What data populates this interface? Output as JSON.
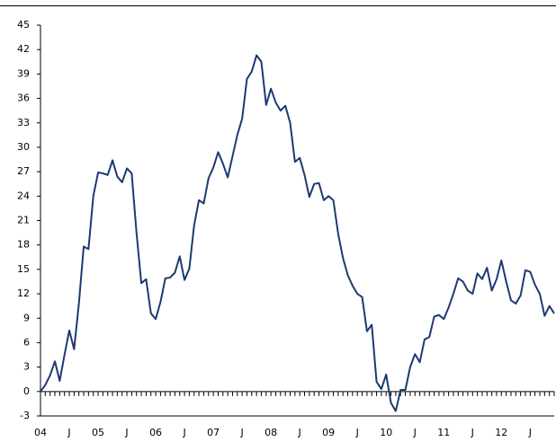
{
  "chart_data": {
    "type": "line",
    "color": "#1c3a72",
    "categories": [
      "04",
      null,
      null,
      null,
      null,
      null,
      "J",
      null,
      null,
      null,
      null,
      null,
      "05",
      null,
      null,
      null,
      null,
      null,
      "J",
      null,
      null,
      null,
      null,
      null,
      "06",
      null,
      null,
      null,
      null,
      null,
      "J",
      null,
      null,
      null,
      null,
      null,
      "07",
      null,
      null,
      null,
      null,
      null,
      "J",
      null,
      null,
      null,
      null,
      null,
      "08",
      null,
      null,
      null,
      null,
      null,
      "J",
      null,
      null,
      null,
      null,
      null,
      "09",
      null,
      null,
      null,
      null,
      null,
      "J",
      null,
      null,
      null,
      null,
      null,
      "10",
      null,
      null,
      null,
      null,
      null,
      "J",
      null,
      null,
      null,
      null,
      null,
      "11",
      null,
      null,
      null,
      null,
      null,
      "J",
      null,
      null,
      null,
      null,
      null,
      "12",
      null,
      null,
      null,
      null,
      null,
      "J",
      null,
      null,
      null,
      null,
      null
    ],
    "values": [
      0,
      0.8,
      2.0,
      3.7,
      1.3,
      4.5,
      7.5,
      5.2,
      10.8,
      17.8,
      17.5,
      24.0,
      26.9,
      26.8,
      26.6,
      28.4,
      26.4,
      25.7,
      27.4,
      26.8,
      19.5,
      13.3,
      13.8,
      9.6,
      8.9,
      11.0,
      13.9,
      14.0,
      14.6,
      16.6,
      13.7,
      15.1,
      20.4,
      23.5,
      23.1,
      26.2,
      27.5,
      29.4,
      28.0,
      26.3,
      28.9,
      31.5,
      33.5,
      38.4,
      39.3,
      41.3,
      40.5,
      35.2,
      37.2,
      35.5,
      34.5,
      35.1,
      33.0,
      28.2,
      28.7,
      26.6,
      23.9,
      25.5,
      25.6,
      23.5,
      24.0,
      23.5,
      19.4,
      16.4,
      14.3,
      13.0,
      12.0,
      11.6,
      7.4,
      8.2,
      1.2,
      0.3,
      2.1,
      -1.4,
      -2.4,
      0.2,
      0.2,
      3.0,
      4.6,
      3.6,
      6.4,
      6.7,
      9.2,
      9.4,
      8.9,
      10.3,
      12.0,
      13.9,
      13.5,
      12.4,
      12.0,
      14.5,
      13.8,
      15.2,
      12.4,
      13.8,
      16.1,
      13.5,
      11.2,
      10.8,
      11.8,
      14.9,
      14.7,
      13.1,
      12.0,
      9.3,
      10.5,
      9.6
    ],
    "ylim": [
      -3,
      45
    ],
    "yticks": [
      -3,
      0,
      3,
      6,
      9,
      12,
      15,
      18,
      21,
      24,
      27,
      30,
      33,
      36,
      39,
      42,
      45
    ]
  }
}
